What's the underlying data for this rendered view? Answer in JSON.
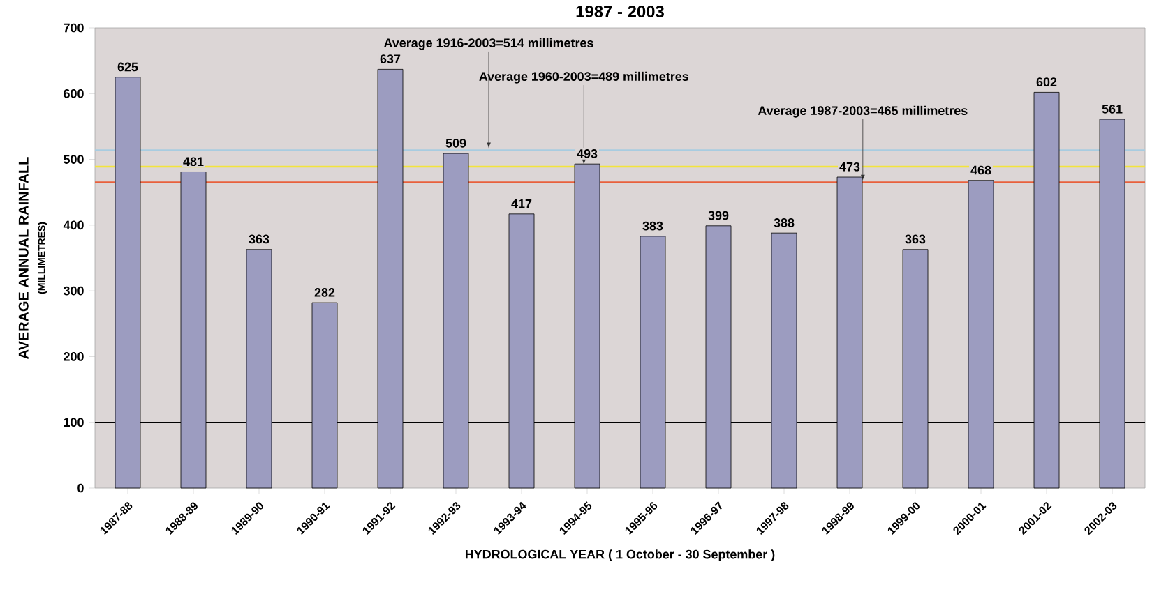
{
  "chart_data": {
    "type": "bar",
    "title": "1987 - 2003",
    "xlabel": "HYDROLOGICAL YEAR ( 1 October - 30 September )",
    "ylabel": "AVERAGE ANNUAL RAINFALL",
    "subtitle": "(MILLIMETRES)",
    "categories": [
      "1987-88",
      "1988-89",
      "1989-90",
      "1990-91",
      "1991-92",
      "1992-93",
      "1993-94",
      "1994-95",
      "1995-96",
      "1996-97",
      "1997-98",
      "1998-99",
      "1999-00",
      "2000-01",
      "2001-02",
      "2002-03"
    ],
    "values": [
      625,
      481,
      363,
      282,
      637,
      509,
      417,
      493,
      383,
      399,
      388,
      473,
      363,
      468,
      602,
      561
    ],
    "color": "#9c9cc0",
    "data_labels": true,
    "ylim": [
      0,
      700
    ],
    "yticks": [
      0,
      100,
      200,
      300,
      400,
      500,
      600,
      700
    ],
    "ref_lines": [
      {
        "axis": "y",
        "value": 514,
        "label": "Average 1916-2003=514 millimetres",
        "color": "#a8cce0"
      },
      {
        "axis": "y",
        "value": 489,
        "label": "Average 1960-2003=489 millimetres",
        "color": "#f2e43c"
      },
      {
        "axis": "y",
        "value": 465,
        "label": "Average 1987-2003=465 millimetres",
        "color": "#e8603c"
      },
      {
        "axis": "y",
        "value": 100,
        "color": "#000000"
      }
    ]
  }
}
